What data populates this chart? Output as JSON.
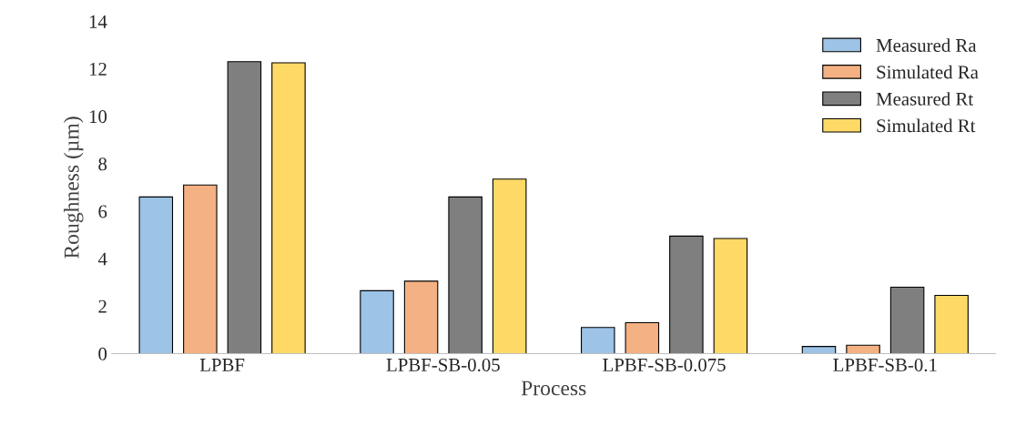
{
  "chart_data": {
    "type": "bar",
    "xlabel": "Process",
    "ylabel": "Roughness (µm)",
    "categories": [
      "LPBF",
      "LPBF-SB-0.05",
      "LPBF-SB-0.075",
      "LPBF-SB-0.1"
    ],
    "series": [
      {
        "name": "Measured Ra",
        "color": "#9dc3e6",
        "values": [
          6.6,
          2.65,
          1.1,
          0.3
        ]
      },
      {
        "name": "Simulated Ra",
        "color": "#f4b183",
        "values": [
          7.1,
          3.05,
          1.3,
          0.35
        ]
      },
      {
        "name": "Measured Rt",
        "color": "#7f7f7f",
        "values": [
          12.3,
          6.6,
          4.95,
          2.8
        ]
      },
      {
        "name": "Simulated Rt",
        "color": "#ffd966",
        "values": [
          12.25,
          7.35,
          4.85,
          2.45
        ]
      }
    ],
    "ylim": [
      0,
      14
    ],
    "yticks": [
      0,
      2,
      4,
      6,
      8,
      10,
      12,
      14
    ],
    "grid": false,
    "legend": "top right"
  }
}
